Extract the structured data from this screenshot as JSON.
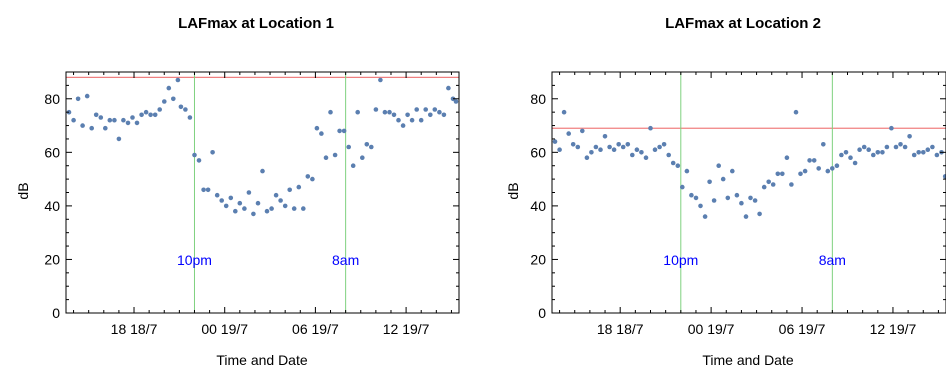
{
  "chart_data": [
    {
      "type": "scatter",
      "title": "LAFmax at Location 1",
      "xlabel": "Time and Date",
      "ylabel": "dB",
      "ylim": [
        0,
        90
      ],
      "xlim": [
        13.5,
        39.5
      ],
      "xticks": [
        {
          "x": 18,
          "label": "18 18/7"
        },
        {
          "x": 24,
          "label": "00 19/7"
        },
        {
          "x": 30,
          "label": "06 19/7"
        },
        {
          "x": 36,
          "label": "12 19/7"
        }
      ],
      "yticks": [
        0,
        20,
        40,
        60,
        80
      ],
      "threshold": 88,
      "threshold_color": "#f08080",
      "vlines": [
        {
          "x": 22,
          "label": "10pm"
        },
        {
          "x": 32,
          "label": "8am"
        }
      ],
      "vline_color": "#7fd17f",
      "annotation_color": "#0000ff",
      "point_color": "#5b7fb0",
      "points": [
        [
          13.7,
          75
        ],
        [
          14.0,
          72
        ],
        [
          14.3,
          80
        ],
        [
          14.6,
          70
        ],
        [
          14.9,
          81
        ],
        [
          15.2,
          69
        ],
        [
          15.5,
          74
        ],
        [
          15.8,
          73
        ],
        [
          16.1,
          69
        ],
        [
          16.4,
          72
        ],
        [
          16.7,
          72
        ],
        [
          17.0,
          65
        ],
        [
          17.3,
          72
        ],
        [
          17.6,
          71
        ],
        [
          17.9,
          73
        ],
        [
          18.2,
          71
        ],
        [
          18.5,
          74
        ],
        [
          18.8,
          75
        ],
        [
          19.1,
          74
        ],
        [
          19.4,
          74
        ],
        [
          19.7,
          76
        ],
        [
          20.0,
          79
        ],
        [
          20.3,
          84
        ],
        [
          20.6,
          80
        ],
        [
          20.9,
          87
        ],
        [
          21.1,
          77
        ],
        [
          21.4,
          76
        ],
        [
          21.7,
          73
        ],
        [
          22.0,
          59
        ],
        [
          22.3,
          57
        ],
        [
          22.6,
          46
        ],
        [
          22.9,
          46
        ],
        [
          23.2,
          60
        ],
        [
          23.5,
          44
        ],
        [
          23.8,
          42
        ],
        [
          24.1,
          40
        ],
        [
          24.4,
          43
        ],
        [
          24.7,
          38
        ],
        [
          25.0,
          41
        ],
        [
          25.3,
          39
        ],
        [
          25.6,
          45
        ],
        [
          25.9,
          37
        ],
        [
          26.2,
          41
        ],
        [
          26.5,
          53
        ],
        [
          26.8,
          38
        ],
        [
          27.1,
          39
        ],
        [
          27.4,
          44
        ],
        [
          27.7,
          42
        ],
        [
          28.0,
          40
        ],
        [
          28.3,
          46
        ],
        [
          28.6,
          39
        ],
        [
          28.9,
          47
        ],
        [
          29.2,
          39
        ],
        [
          29.5,
          51
        ],
        [
          29.8,
          50
        ],
        [
          30.1,
          69
        ],
        [
          30.4,
          67
        ],
        [
          30.7,
          58
        ],
        [
          31.0,
          75
        ],
        [
          31.3,
          59
        ],
        [
          31.6,
          68
        ],
        [
          31.9,
          68
        ],
        [
          32.2,
          62
        ],
        [
          32.5,
          55
        ],
        [
          32.8,
          75
        ],
        [
          33.1,
          58
        ],
        [
          33.4,
          63
        ],
        [
          33.7,
          62
        ],
        [
          34.0,
          76
        ],
        [
          34.3,
          87
        ],
        [
          34.6,
          75
        ],
        [
          34.9,
          75
        ],
        [
          35.2,
          74
        ],
        [
          35.5,
          72
        ],
        [
          35.8,
          70
        ],
        [
          36.1,
          74
        ],
        [
          36.4,
          72
        ],
        [
          36.7,
          76
        ],
        [
          37.0,
          72
        ],
        [
          37.3,
          76
        ],
        [
          37.6,
          74
        ],
        [
          37.9,
          76
        ],
        [
          38.2,
          75
        ],
        [
          38.5,
          74
        ],
        [
          38.8,
          84
        ],
        [
          39.1,
          80
        ],
        [
          39.3,
          79
        ]
      ]
    },
    {
      "type": "scatter",
      "title": "LAFmax at Location 2",
      "xlabel": "Time and Date",
      "ylabel": "dB",
      "ylim": [
        0,
        90
      ],
      "xlim": [
        13.5,
        39.5
      ],
      "xticks": [
        {
          "x": 18,
          "label": "18 18/7"
        },
        {
          "x": 24,
          "label": "00 19/7"
        },
        {
          "x": 30,
          "label": "06 19/7"
        },
        {
          "x": 36,
          "label": "12 19/7"
        }
      ],
      "yticks": [
        0,
        20,
        40,
        60,
        80
      ],
      "threshold": 69,
      "threshold_color": "#f08080",
      "vlines": [
        {
          "x": 22,
          "label": "10pm"
        },
        {
          "x": 32,
          "label": "8am"
        }
      ],
      "vline_color": "#7fd17f",
      "annotation_color": "#0000ff",
      "point_color": "#5b7fb0",
      "points": [
        [
          13.7,
          64
        ],
        [
          14.0,
          61
        ],
        [
          14.3,
          75
        ],
        [
          14.6,
          67
        ],
        [
          14.9,
          63
        ],
        [
          15.2,
          62
        ],
        [
          15.5,
          68
        ],
        [
          15.8,
          58
        ],
        [
          16.1,
          60
        ],
        [
          16.4,
          62
        ],
        [
          16.7,
          61
        ],
        [
          17.0,
          66
        ],
        [
          17.3,
          62
        ],
        [
          17.6,
          61
        ],
        [
          17.9,
          63
        ],
        [
          18.2,
          62
        ],
        [
          18.5,
          63
        ],
        [
          18.8,
          59
        ],
        [
          19.1,
          61
        ],
        [
          19.4,
          60
        ],
        [
          19.7,
          58
        ],
        [
          20.0,
          69
        ],
        [
          20.3,
          61
        ],
        [
          20.6,
          62
        ],
        [
          20.9,
          63
        ],
        [
          21.2,
          59
        ],
        [
          21.5,
          56
        ],
        [
          21.8,
          55
        ],
        [
          22.1,
          47
        ],
        [
          22.4,
          53
        ],
        [
          22.7,
          44
        ],
        [
          23.0,
          43
        ],
        [
          23.3,
          40
        ],
        [
          23.6,
          36
        ],
        [
          23.9,
          49
        ],
        [
          24.2,
          42
        ],
        [
          24.5,
          55
        ],
        [
          24.8,
          50
        ],
        [
          25.1,
          43
        ],
        [
          25.4,
          53
        ],
        [
          25.7,
          44
        ],
        [
          26.0,
          41
        ],
        [
          26.3,
          36
        ],
        [
          26.6,
          43
        ],
        [
          26.9,
          42
        ],
        [
          27.2,
          37
        ],
        [
          27.5,
          47
        ],
        [
          27.8,
          49
        ],
        [
          28.1,
          48
        ],
        [
          28.4,
          52
        ],
        [
          28.7,
          52
        ],
        [
          29.0,
          58
        ],
        [
          29.3,
          48
        ],
        [
          29.6,
          75
        ],
        [
          29.9,
          52
        ],
        [
          30.2,
          53
        ],
        [
          30.5,
          57
        ],
        [
          30.8,
          57
        ],
        [
          31.1,
          54
        ],
        [
          31.4,
          63
        ],
        [
          31.7,
          53
        ],
        [
          32.0,
          54
        ],
        [
          32.3,
          55
        ],
        [
          32.6,
          59
        ],
        [
          32.9,
          60
        ],
        [
          33.2,
          58
        ],
        [
          33.5,
          56
        ],
        [
          33.8,
          61
        ],
        [
          34.1,
          62
        ],
        [
          34.4,
          61
        ],
        [
          34.7,
          59
        ],
        [
          35.0,
          60
        ],
        [
          35.3,
          60
        ],
        [
          35.6,
          62
        ],
        [
          35.9,
          69
        ],
        [
          36.2,
          62
        ],
        [
          36.5,
          63
        ],
        [
          36.8,
          62
        ],
        [
          37.1,
          66
        ],
        [
          37.4,
          59
        ],
        [
          37.7,
          60
        ],
        [
          38.0,
          60
        ],
        [
          38.3,
          61
        ],
        [
          38.6,
          62
        ],
        [
          38.9,
          59
        ],
        [
          39.2,
          60
        ],
        [
          39.45,
          51
        ]
      ]
    }
  ]
}
